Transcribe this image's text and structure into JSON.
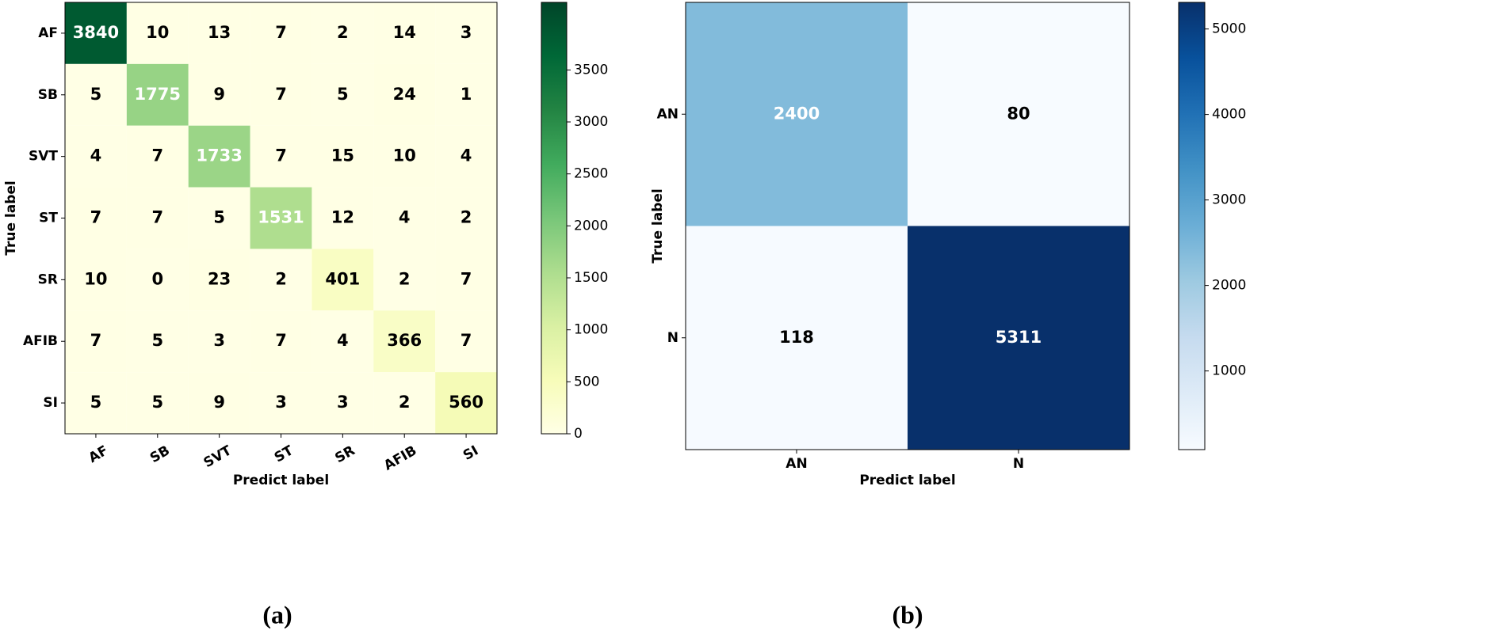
{
  "chart_data": [
    {
      "type": "heatmap",
      "caption": "(a)",
      "xlabel": "Predict label",
      "ylabel": "True label",
      "x_categories": [
        "AF",
        "SB",
        "SVT",
        "ST",
        "SR",
        "AFIB",
        "SI"
      ],
      "y_categories": [
        "AF",
        "SB",
        "SVT",
        "ST",
        "SR",
        "AFIB",
        "SI"
      ],
      "values": [
        [
          3840,
          10,
          13,
          7,
          2,
          14,
          3
        ],
        [
          5,
          1775,
          9,
          7,
          5,
          24,
          1
        ],
        [
          4,
          7,
          1733,
          7,
          15,
          10,
          4
        ],
        [
          7,
          7,
          5,
          1531,
          12,
          4,
          2
        ],
        [
          10,
          0,
          23,
          2,
          401,
          2,
          7
        ],
        [
          7,
          5,
          3,
          7,
          4,
          366,
          7
        ],
        [
          5,
          5,
          9,
          3,
          3,
          2,
          560
        ]
      ],
      "clim": [
        0,
        4150
      ],
      "cticks": [
        0,
        500,
        1000,
        1500,
        2000,
        2500,
        3000,
        3500
      ],
      "colormap": [
        "#ffffe5",
        "#f7fcb9",
        "#d9f0a3",
        "#addd8e",
        "#78c679",
        "#41ab5d",
        "#238443",
        "#006837",
        "#004529"
      ]
    },
    {
      "type": "heatmap",
      "caption": "(b)",
      "xlabel": "Predict label",
      "ylabel": "True label",
      "x_categories": [
        "AN",
        "N"
      ],
      "y_categories": [
        "AN",
        "N"
      ],
      "values": [
        [
          2400,
          80
        ],
        [
          118,
          5311
        ]
      ],
      "clim": [
        80,
        5311
      ],
      "cticks": [
        1000,
        2000,
        3000,
        4000,
        5000
      ],
      "colormap": [
        "#f7fbff",
        "#deebf7",
        "#c6dbef",
        "#9ecae1",
        "#6baed6",
        "#4292c6",
        "#2171b5",
        "#08519c",
        "#08306b"
      ]
    }
  ]
}
